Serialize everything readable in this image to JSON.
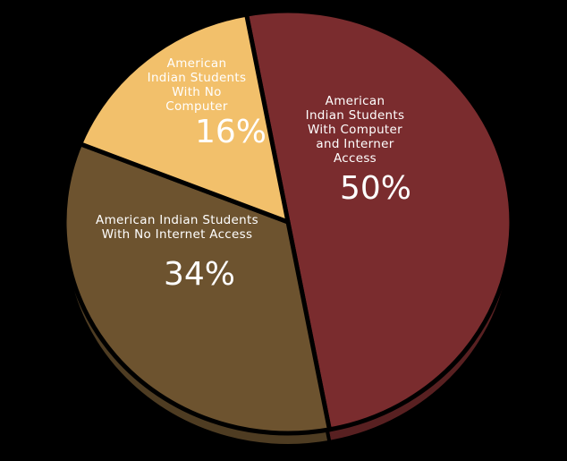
{
  "chart_data": {
    "type": "pie",
    "categories": [
      "American\nIndian Students\nWith Computer\nand Interner\nAccess",
      "American Indian Students\nWith No Internet Access",
      "American\nIndian Students\nWith No\nComputer"
    ],
    "values": [
      50,
      34,
      16
    ],
    "value_labels": [
      "50%",
      "34%",
      "16%"
    ],
    "colors": [
      "#7a2c2e",
      "#6d532f",
      "#f2c06b"
    ]
  }
}
